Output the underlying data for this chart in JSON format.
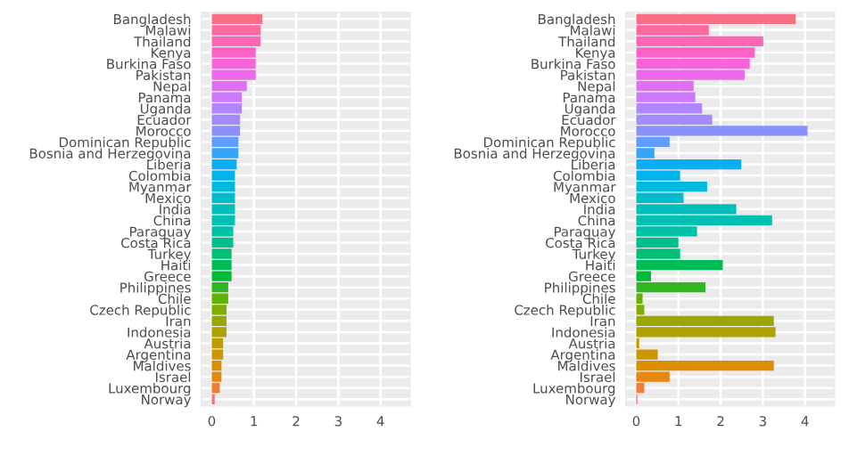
{
  "chart_data": [
    {
      "type": "bar",
      "orientation": "horizontal",
      "categories": [
        "Bangladesh",
        "Malawi",
        "Thailand",
        "Kenya",
        "Burkina Faso",
        "Pakistan",
        "Nepal",
        "Panama",
        "Uganda",
        "Ecuador",
        "Morocco",
        "Dominican Republic",
        "Bosnia and Herzegovina",
        "Liberia",
        "Colombia",
        "Myanmar",
        "Mexico",
        "India",
        "China",
        "Paraguay",
        "Costa Rica",
        "Turkey",
        "Haiti",
        "Greece",
        "Philippines",
        "Chile",
        "Czech Republic",
        "Iran",
        "Indonesia",
        "Austria",
        "Argentina",
        "Maldives",
        "Israel",
        "Luxembourg",
        "Norway"
      ],
      "values": [
        1.2,
        1.16,
        1.16,
        1.04,
        1.04,
        1.04,
        0.83,
        0.71,
        0.71,
        0.67,
        0.67,
        0.63,
        0.63,
        0.59,
        0.55,
        0.55,
        0.55,
        0.55,
        0.55,
        0.51,
        0.51,
        0.47,
        0.47,
        0.47,
        0.39,
        0.39,
        0.35,
        0.35,
        0.35,
        0.27,
        0.27,
        0.23,
        0.23,
        0.19,
        0.07
      ],
      "colors": [
        "#FB6F86",
        "#FE689F",
        "#FE65B4",
        "#FD62C9",
        "#F764DA",
        "#ED68EA",
        "#DF6FF5",
        "#CA7AFB",
        "#B185FF",
        "#A58AFF",
        "#8991FF",
        "#619CFF",
        "#35A5FB",
        "#09AEF7",
        "#00B4EB",
        "#00BADD",
        "#00BDCD",
        "#00BFBA",
        "#00C0B2",
        "#00C0A6",
        "#00BF8F",
        "#00BF76",
        "#00BC57",
        "#00BA38",
        "#30B61F",
        "#61B205",
        "#7FAD00",
        "#99A700",
        "#ADA200",
        "#BF9C00",
        "#CE9500",
        "#DB8E00",
        "#E68613",
        "#EF7E3C",
        "#F8766D"
      ],
      "xlim": [
        -0.25,
        4.7
      ],
      "xticks": [
        0,
        1,
        2,
        3,
        4
      ],
      "grid": true
    },
    {
      "type": "bar",
      "orientation": "horizontal",
      "categories": [
        "Bangladesh",
        "Malawi",
        "Thailand",
        "Kenya",
        "Burkina Faso",
        "Pakistan",
        "Nepal",
        "Panama",
        "Uganda",
        "Ecuador",
        "Morocco",
        "Dominican Republic",
        "Bosnia and Herzegovina",
        "Liberia",
        "Colombia",
        "Myanmar",
        "Mexico",
        "India",
        "China",
        "Paraguay",
        "Costa Rica",
        "Turkey",
        "Haiti",
        "Greece",
        "Philippines",
        "Chile",
        "Czech Republic",
        "Iran",
        "Indonesia",
        "Austria",
        "Argentina",
        "Maldives",
        "Israel",
        "Luxembourg",
        "Norway"
      ],
      "values": [
        3.78,
        1.72,
        3.01,
        2.81,
        2.69,
        2.57,
        1.36,
        1.4,
        1.56,
        1.8,
        4.06,
        0.79,
        0.43,
        2.49,
        1.04,
        1.68,
        1.12,
        2.37,
        3.22,
        1.44,
        1.0,
        1.04,
        2.05,
        0.35,
        1.64,
        0.15,
        0.19,
        3.26,
        3.3,
        0.07,
        0.51,
        3.26,
        0.79,
        0.19,
        0.03
      ],
      "colors": [
        "#FB6F86",
        "#FE689F",
        "#FE65B4",
        "#FD62C9",
        "#F764DA",
        "#ED68EA",
        "#DF6FF5",
        "#CA7AFB",
        "#B185FF",
        "#A58AFF",
        "#8991FF",
        "#619CFF",
        "#35A5FB",
        "#09AEF7",
        "#00B4EB",
        "#00BADD",
        "#00BDCD",
        "#00BFBA",
        "#00C0B2",
        "#00C0A6",
        "#00BF8F",
        "#00BF76",
        "#00BC57",
        "#00BA38",
        "#30B61F",
        "#61B205",
        "#7FAD00",
        "#99A700",
        "#ADA200",
        "#BF9C00",
        "#CE9500",
        "#DB8E00",
        "#E68613",
        "#EF7E3C",
        "#F8766D"
      ],
      "xlim": [
        -0.25,
        4.7
      ],
      "xticks": [
        0,
        1,
        2,
        3,
        4
      ],
      "grid": true
    }
  ]
}
